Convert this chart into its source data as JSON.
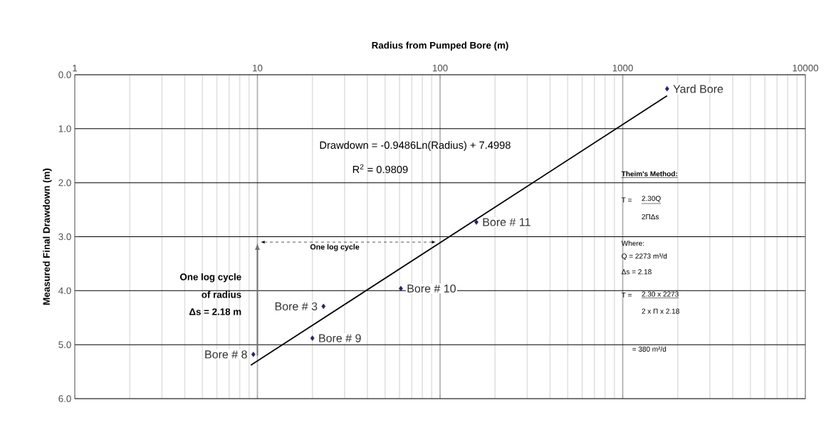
{
  "chart_data": {
    "type": "scatter",
    "xlabel": "Radius from Pumped Bore (m)",
    "ylabel": "Measured Final Drawdown (m)",
    "log": "x",
    "xlim": [
      1,
      10000
    ],
    "ylim": [
      6,
      0
    ],
    "xticks": [
      1,
      10,
      100,
      1000,
      10000
    ],
    "yticks": [
      {
        "value": 0,
        "label": "0.0"
      },
      {
        "value": 1,
        "label": "1.0"
      },
      {
        "value": 2,
        "label": "2.0"
      },
      {
        "value": 3,
        "label": "3.0"
      },
      {
        "value": 4,
        "label": "4.0"
      },
      {
        "value": 5,
        "label": "5.0"
      },
      {
        "value": 6,
        "label": "6.0"
      }
    ],
    "grid": true,
    "series": [
      {
        "color": "#23236e",
        "marker": "diamond",
        "x": [
          1750,
          158,
          61,
          23,
          20,
          9.5
        ],
        "values": [
          0.26,
          2.73,
          3.96,
          4.29,
          4.88,
          5.18
        ]
      },
      {
        "type": "line",
        "color": "#000000",
        "marker": "none",
        "x": [
          9.2,
          1750
        ],
        "values": [
          5.38,
          0.39
        ]
      }
    ],
    "annotations": [
      {
        "text": "Yard Bore",
        "x": 1750,
        "y": 0.26
      },
      {
        "text": "Bore # 11",
        "x": 158,
        "y": 2.73
      },
      {
        "text": "Bore # 10",
        "x": 61,
        "y": 3.96
      },
      {
        "text": "Bore # 3",
        "x": 23,
        "y": 4.29
      },
      {
        "text": "Bore # 9",
        "x": 20,
        "y": 4.88
      },
      {
        "text": "Bore # 8",
        "x": 9.5,
        "y": 5.18
      },
      "Drawdown = -0.9486Ln(Radius) + 7.4998",
      "R$^{2}$ = 0.9809",
      "One log cycle",
      "One log cycle",
      "of radius",
      "Δs = 2.18 m",
      "Theim's Method:",
      "T =",
      "2.30Q",
      "2ΠΔs",
      "Where:",
      "Q = 2273 m³/d",
      "Δs = 2.18",
      "T =",
      "2.30 x 2273",
      "2 x Π x 2.18",
      "= 380 m²/d"
    ]
  }
}
